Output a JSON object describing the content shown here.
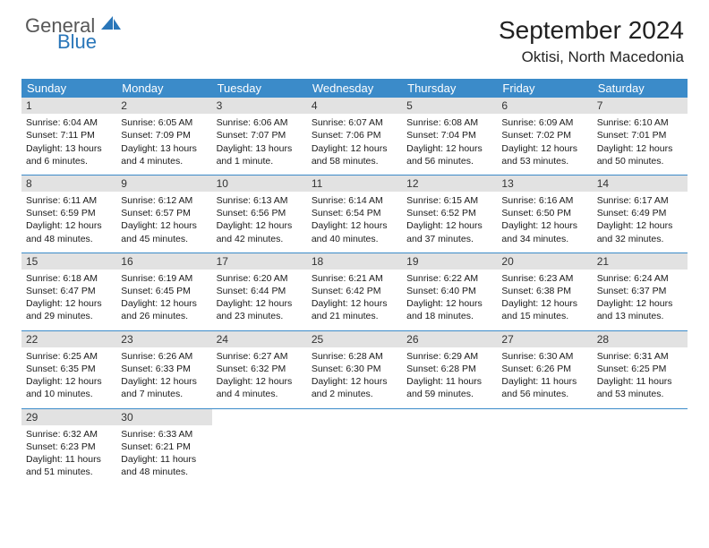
{
  "logo": {
    "line1": "General",
    "line2": "Blue",
    "icon_color": "#2976b9"
  },
  "header": {
    "month_title": "September 2024",
    "location": "Oktisi, North Macedonia"
  },
  "colors": {
    "header_bar": "#3b8bc9",
    "daynum_bg": "#e2e2e2",
    "rule": "#3b8bc9"
  },
  "weekdays": [
    "Sunday",
    "Monday",
    "Tuesday",
    "Wednesday",
    "Thursday",
    "Friday",
    "Saturday"
  ],
  "weeks": [
    [
      {
        "num": "1",
        "sunrise": "Sunrise: 6:04 AM",
        "sunset": "Sunset: 7:11 PM",
        "daylight": "Daylight: 13 hours and 6 minutes."
      },
      {
        "num": "2",
        "sunrise": "Sunrise: 6:05 AM",
        "sunset": "Sunset: 7:09 PM",
        "daylight": "Daylight: 13 hours and 4 minutes."
      },
      {
        "num": "3",
        "sunrise": "Sunrise: 6:06 AM",
        "sunset": "Sunset: 7:07 PM",
        "daylight": "Daylight: 13 hours and 1 minute."
      },
      {
        "num": "4",
        "sunrise": "Sunrise: 6:07 AM",
        "sunset": "Sunset: 7:06 PM",
        "daylight": "Daylight: 12 hours and 58 minutes."
      },
      {
        "num": "5",
        "sunrise": "Sunrise: 6:08 AM",
        "sunset": "Sunset: 7:04 PM",
        "daylight": "Daylight: 12 hours and 56 minutes."
      },
      {
        "num": "6",
        "sunrise": "Sunrise: 6:09 AM",
        "sunset": "Sunset: 7:02 PM",
        "daylight": "Daylight: 12 hours and 53 minutes."
      },
      {
        "num": "7",
        "sunrise": "Sunrise: 6:10 AM",
        "sunset": "Sunset: 7:01 PM",
        "daylight": "Daylight: 12 hours and 50 minutes."
      }
    ],
    [
      {
        "num": "8",
        "sunrise": "Sunrise: 6:11 AM",
        "sunset": "Sunset: 6:59 PM",
        "daylight": "Daylight: 12 hours and 48 minutes."
      },
      {
        "num": "9",
        "sunrise": "Sunrise: 6:12 AM",
        "sunset": "Sunset: 6:57 PM",
        "daylight": "Daylight: 12 hours and 45 minutes."
      },
      {
        "num": "10",
        "sunrise": "Sunrise: 6:13 AM",
        "sunset": "Sunset: 6:56 PM",
        "daylight": "Daylight: 12 hours and 42 minutes."
      },
      {
        "num": "11",
        "sunrise": "Sunrise: 6:14 AM",
        "sunset": "Sunset: 6:54 PM",
        "daylight": "Daylight: 12 hours and 40 minutes."
      },
      {
        "num": "12",
        "sunrise": "Sunrise: 6:15 AM",
        "sunset": "Sunset: 6:52 PM",
        "daylight": "Daylight: 12 hours and 37 minutes."
      },
      {
        "num": "13",
        "sunrise": "Sunrise: 6:16 AM",
        "sunset": "Sunset: 6:50 PM",
        "daylight": "Daylight: 12 hours and 34 minutes."
      },
      {
        "num": "14",
        "sunrise": "Sunrise: 6:17 AM",
        "sunset": "Sunset: 6:49 PM",
        "daylight": "Daylight: 12 hours and 32 minutes."
      }
    ],
    [
      {
        "num": "15",
        "sunrise": "Sunrise: 6:18 AM",
        "sunset": "Sunset: 6:47 PM",
        "daylight": "Daylight: 12 hours and 29 minutes."
      },
      {
        "num": "16",
        "sunrise": "Sunrise: 6:19 AM",
        "sunset": "Sunset: 6:45 PM",
        "daylight": "Daylight: 12 hours and 26 minutes."
      },
      {
        "num": "17",
        "sunrise": "Sunrise: 6:20 AM",
        "sunset": "Sunset: 6:44 PM",
        "daylight": "Daylight: 12 hours and 23 minutes."
      },
      {
        "num": "18",
        "sunrise": "Sunrise: 6:21 AM",
        "sunset": "Sunset: 6:42 PM",
        "daylight": "Daylight: 12 hours and 21 minutes."
      },
      {
        "num": "19",
        "sunrise": "Sunrise: 6:22 AM",
        "sunset": "Sunset: 6:40 PM",
        "daylight": "Daylight: 12 hours and 18 minutes."
      },
      {
        "num": "20",
        "sunrise": "Sunrise: 6:23 AM",
        "sunset": "Sunset: 6:38 PM",
        "daylight": "Daylight: 12 hours and 15 minutes."
      },
      {
        "num": "21",
        "sunrise": "Sunrise: 6:24 AM",
        "sunset": "Sunset: 6:37 PM",
        "daylight": "Daylight: 12 hours and 13 minutes."
      }
    ],
    [
      {
        "num": "22",
        "sunrise": "Sunrise: 6:25 AM",
        "sunset": "Sunset: 6:35 PM",
        "daylight": "Daylight: 12 hours and 10 minutes."
      },
      {
        "num": "23",
        "sunrise": "Sunrise: 6:26 AM",
        "sunset": "Sunset: 6:33 PM",
        "daylight": "Daylight: 12 hours and 7 minutes."
      },
      {
        "num": "24",
        "sunrise": "Sunrise: 6:27 AM",
        "sunset": "Sunset: 6:32 PM",
        "daylight": "Daylight: 12 hours and 4 minutes."
      },
      {
        "num": "25",
        "sunrise": "Sunrise: 6:28 AM",
        "sunset": "Sunset: 6:30 PM",
        "daylight": "Daylight: 12 hours and 2 minutes."
      },
      {
        "num": "26",
        "sunrise": "Sunrise: 6:29 AM",
        "sunset": "Sunset: 6:28 PM",
        "daylight": "Daylight: 11 hours and 59 minutes."
      },
      {
        "num": "27",
        "sunrise": "Sunrise: 6:30 AM",
        "sunset": "Sunset: 6:26 PM",
        "daylight": "Daylight: 11 hours and 56 minutes."
      },
      {
        "num": "28",
        "sunrise": "Sunrise: 6:31 AM",
        "sunset": "Sunset: 6:25 PM",
        "daylight": "Daylight: 11 hours and 53 minutes."
      }
    ],
    [
      {
        "num": "29",
        "sunrise": "Sunrise: 6:32 AM",
        "sunset": "Sunset: 6:23 PM",
        "daylight": "Daylight: 11 hours and 51 minutes."
      },
      {
        "num": "30",
        "sunrise": "Sunrise: 6:33 AM",
        "sunset": "Sunset: 6:21 PM",
        "daylight": "Daylight: 11 hours and 48 minutes."
      },
      null,
      null,
      null,
      null,
      null
    ]
  ]
}
